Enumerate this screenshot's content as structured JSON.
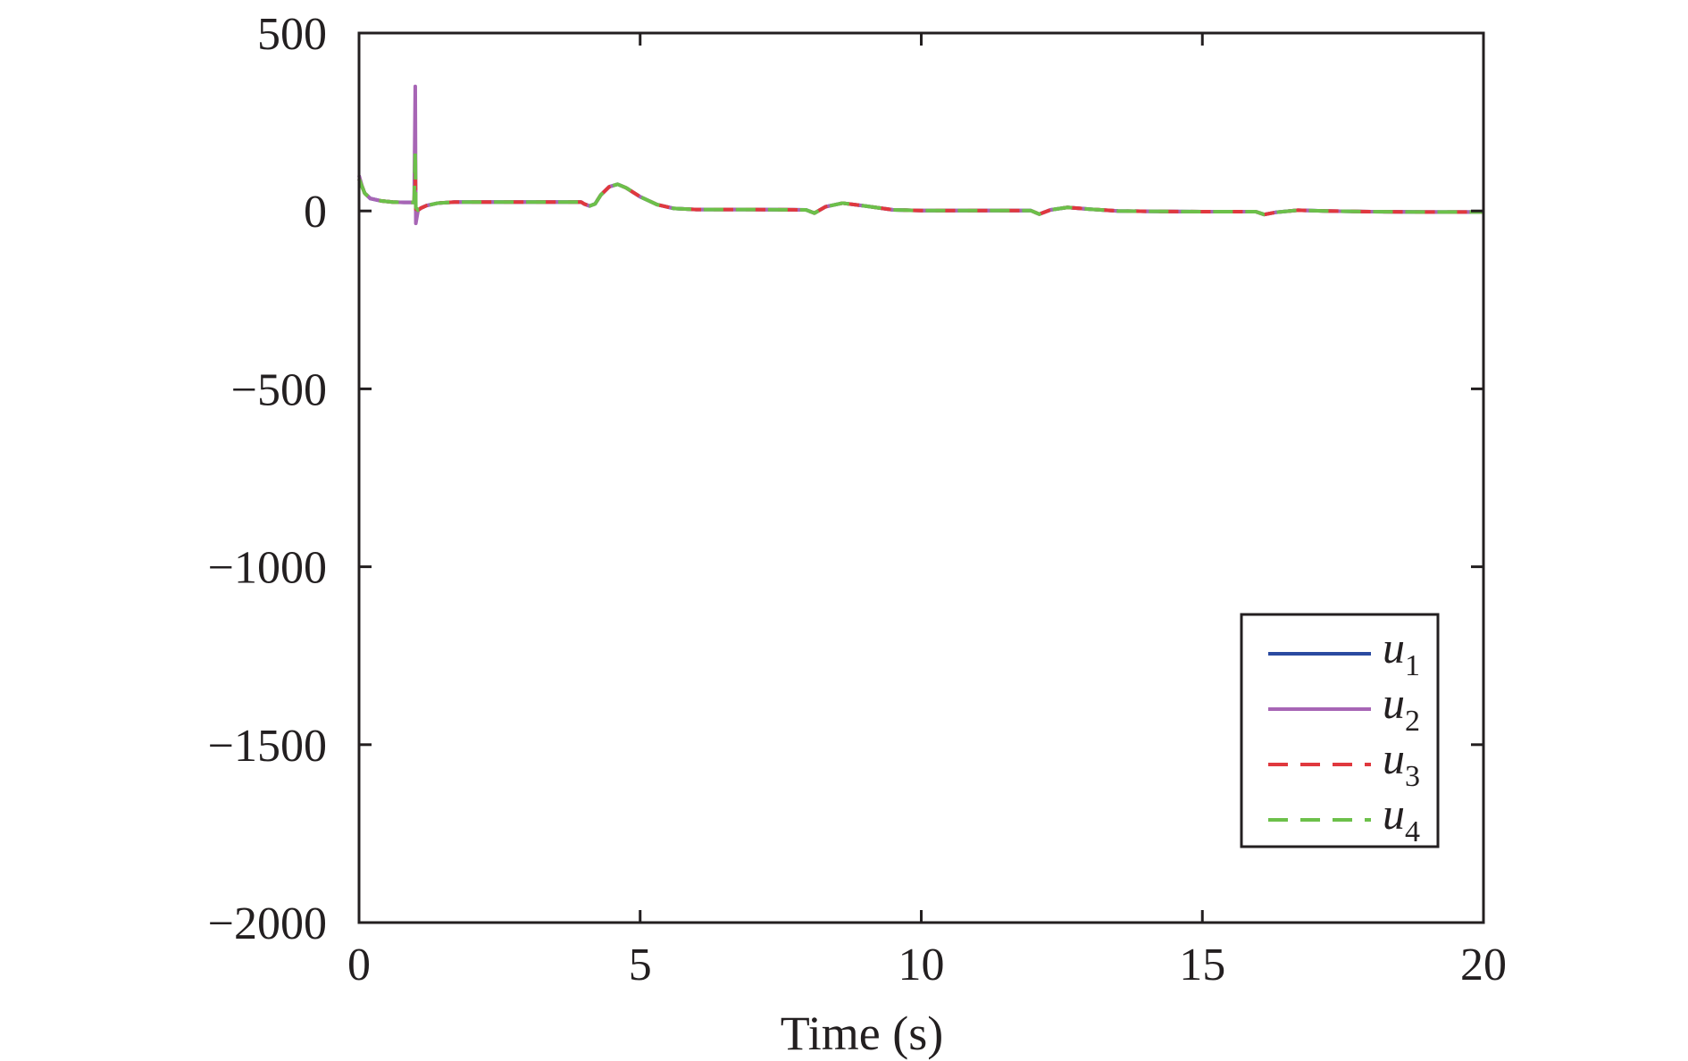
{
  "chart_data": {
    "type": "line",
    "title": "",
    "xlabel": "Time (s)",
    "ylabel": "",
    "xlim": [
      0,
      20
    ],
    "ylim": [
      -2000,
      500
    ],
    "xticks": [
      0,
      5,
      10,
      15,
      20
    ],
    "yticks": [
      500,
      0,
      -500,
      -1000,
      -1500,
      -2000
    ],
    "xtick_labels": [
      "0",
      "5",
      "10",
      "15",
      "20"
    ],
    "ytick_labels": [
      "500",
      "0",
      "−500",
      "−1000",
      "−1500",
      "−2000"
    ],
    "grid": false,
    "legend_position": "bottom-right",
    "series": [
      {
        "name": "u1",
        "label_main": "u",
        "label_sub": "1",
        "color": "#2a4aa0",
        "dash": "solid",
        "x": [
          0,
          0.05,
          0.1,
          0.2,
          0.4,
          0.6,
          0.8,
          0.98,
          1.0,
          1.01,
          1.05,
          1.1,
          1.2,
          1.4,
          1.7,
          2,
          3,
          3.95,
          4.0,
          4.1,
          4.2,
          4.3,
          4.45,
          4.6,
          4.75,
          5.0,
          5.3,
          5.6,
          6,
          7,
          7.95,
          8.1,
          8.3,
          8.6,
          9.0,
          9.5,
          10,
          11,
          11.95,
          12.1,
          12.3,
          12.6,
          13.0,
          13.5,
          14,
          15,
          15.95,
          16.1,
          16.3,
          16.7,
          17.2,
          18,
          19,
          20
        ],
        "y": [
          90,
          70,
          50,
          35,
          28,
          25,
          24,
          24,
          80,
          5,
          2,
          8,
          15,
          22,
          25,
          25,
          25,
          25,
          20,
          14,
          20,
          45,
          68,
          75,
          65,
          40,
          18,
          7,
          4,
          4,
          3,
          -6,
          12,
          22,
          14,
          3,
          1,
          1,
          1,
          -9,
          3,
          10,
          5,
          0,
          -1,
          -2,
          -2,
          -10,
          -4,
          2,
          0,
          -2,
          -3,
          -3
        ]
      },
      {
        "name": "u2",
        "label_main": "u",
        "label_sub": "2",
        "color": "#a765b5",
        "dash": "solid",
        "x": [
          0,
          0.05,
          0.1,
          0.2,
          0.4,
          0.6,
          0.8,
          0.98,
          1.0,
          1.01,
          1.05,
          1.1,
          1.2,
          1.4,
          1.7,
          2,
          3,
          3.95,
          4.0,
          4.1,
          4.2,
          4.3,
          4.45,
          4.6,
          4.75,
          5.0,
          5.3,
          5.6,
          6,
          7,
          7.95,
          8.1,
          8.3,
          8.6,
          9.0,
          9.5,
          10,
          11,
          11.95,
          12.1,
          12.3,
          12.6,
          13.0,
          13.5,
          14,
          15,
          15.95,
          16.1,
          16.3,
          16.7,
          17.2,
          18,
          19,
          20
        ],
        "y": [
          100,
          72,
          50,
          35,
          28,
          25,
          24,
          24,
          350,
          -35,
          2,
          8,
          15,
          22,
          25,
          25,
          25,
          25,
          20,
          14,
          20,
          45,
          68,
          75,
          65,
          40,
          18,
          7,
          4,
          4,
          3,
          -6,
          12,
          22,
          14,
          3,
          1,
          1,
          1,
          -9,
          3,
          10,
          5,
          0,
          -1,
          -2,
          -2,
          -10,
          -4,
          2,
          0,
          -2,
          -3,
          -3
        ]
      },
      {
        "name": "u3",
        "label_main": "u",
        "label_sub": "3",
        "color": "#e0383e",
        "dash": "dashed",
        "x": [
          0,
          0.05,
          0.1,
          0.2,
          0.4,
          0.6,
          0.8,
          0.98,
          1.0,
          1.01,
          1.05,
          1.1,
          1.2,
          1.4,
          1.7,
          2,
          3,
          3.95,
          4.0,
          4.1,
          4.2,
          4.3,
          4.45,
          4.6,
          4.75,
          5.0,
          5.3,
          5.6,
          6,
          7,
          7.95,
          8.1,
          8.3,
          8.6,
          9.0,
          9.5,
          10,
          11,
          11.95,
          12.1,
          12.3,
          12.6,
          13.0,
          13.5,
          14,
          15,
          15.95,
          16.1,
          16.3,
          16.7,
          17.2,
          18,
          19,
          20
        ],
        "y": [
          90,
          70,
          50,
          35,
          28,
          25,
          24,
          24,
          110,
          5,
          2,
          8,
          15,
          22,
          25,
          25,
          25,
          25,
          20,
          14,
          20,
          45,
          68,
          75,
          65,
          40,
          18,
          7,
          4,
          4,
          3,
          -6,
          12,
          22,
          14,
          3,
          1,
          1,
          1,
          -9,
          3,
          10,
          5,
          0,
          -1,
          -2,
          -2,
          -10,
          -4,
          2,
          0,
          -2,
          -3,
          -3
        ]
      },
      {
        "name": "u4",
        "label_main": "u",
        "label_sub": "4",
        "color": "#6cc04a",
        "dash": "dashed",
        "x": [
          0,
          0.05,
          0.1,
          0.2,
          0.4,
          0.6,
          0.8,
          0.98,
          1.0,
          1.01,
          1.05,
          1.1,
          1.2,
          1.4,
          1.7,
          2,
          3,
          3.95,
          4.0,
          4.1,
          4.2,
          4.3,
          4.45,
          4.6,
          4.75,
          5.0,
          5.3,
          5.6,
          6,
          7,
          7.95,
          8.1,
          8.3,
          8.6,
          9.0,
          9.5,
          10,
          11,
          11.95,
          12.1,
          12.3,
          12.6,
          13.0,
          13.5,
          14,
          15,
          15.95,
          16.1,
          16.3,
          16.7,
          17.2,
          18,
          19,
          20
        ],
        "y": [
          90,
          70,
          50,
          35,
          28,
          25,
          24,
          24,
          170,
          10,
          2,
          8,
          15,
          22,
          25,
          25,
          25,
          25,
          20,
          14,
          20,
          45,
          68,
          75,
          65,
          40,
          18,
          7,
          4,
          4,
          3,
          -6,
          12,
          22,
          14,
          3,
          1,
          1,
          1,
          -9,
          3,
          10,
          5,
          0,
          -1,
          -2,
          -2,
          -10,
          -4,
          2,
          0,
          -2,
          -3,
          -3
        ]
      }
    ]
  }
}
